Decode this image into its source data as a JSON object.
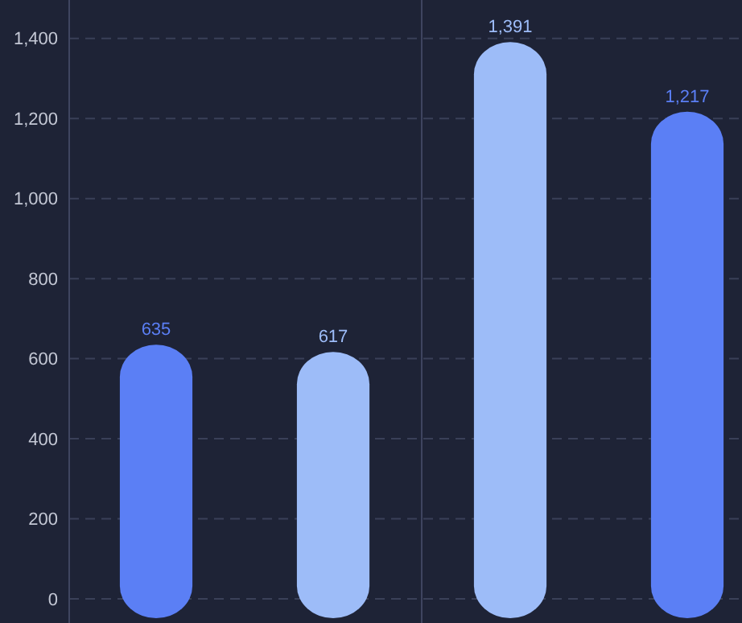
{
  "chart_data": {
    "type": "bar",
    "categories": [
      null,
      null,
      null,
      null
    ],
    "values": [
      635,
      617,
      1391,
      1217
    ],
    "colors": [
      "#5b7ff5",
      "#9dbcf8",
      "#9dbcf8",
      "#5b7ff5"
    ],
    "ylim": [
      0,
      1500
    ],
    "yticks": [
      0,
      200,
      400,
      {
        "value": 600,
        "label": "600"
      },
      800,
      {
        "value": 1000,
        "label": "1,000"
      },
      {
        "value": 1200,
        "label": "1,200"
      },
      {
        "value": 1400,
        "label": "1,400"
      }
    ],
    "grid": "y",
    "data_labels": true,
    "value_labels": [
      "635",
      "617",
      "1,391",
      "1,217"
    ]
  }
}
